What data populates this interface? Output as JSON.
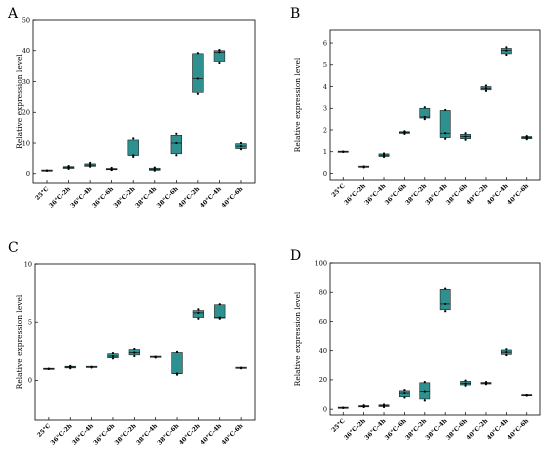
{
  "colors": {
    "box_fill": "#2e9190",
    "outline": "#222222",
    "background": "#ffffff"
  },
  "chart_data": [
    {
      "type": "box",
      "panel": "A",
      "ylabel": "Relative expression level",
      "ylim": [
        -3,
        50
      ],
      "yticks": [
        0,
        10,
        20,
        30,
        40,
        50
      ],
      "categories": [
        "25°C",
        "36°C-2h",
        "36°C-4h",
        "36°C-6h",
        "38°C-2h",
        "38°C-4h",
        "38°C-6h",
        "40°C-2h",
        "40°C-4h",
        "40°C-6h"
      ],
      "values": [
        {
          "min": 1.0,
          "q1": 1.0,
          "median": 1.0,
          "q3": 1.0,
          "max": 1.0
        },
        {
          "min": 1.6,
          "q1": 1.7,
          "median": 2.0,
          "q3": 2.3,
          "max": 2.5
        },
        {
          "min": 2.3,
          "q1": 2.4,
          "median": 2.8,
          "q3": 3.2,
          "max": 3.5
        },
        {
          "min": 1.2,
          "q1": 1.3,
          "median": 1.5,
          "q3": 1.7,
          "max": 1.9
        },
        {
          "min": 5.5,
          "q1": 6.0,
          "median": 6.0,
          "q3": 11.0,
          "max": 11.5
        },
        {
          "min": 1.0,
          "q1": 1.1,
          "median": 1.4,
          "q3": 1.8,
          "max": 2.0
        },
        {
          "min": 6.0,
          "q1": 6.5,
          "median": 10.0,
          "q3": 12.5,
          "max": 13.0
        },
        {
          "min": 26.0,
          "q1": 26.5,
          "median": 31.0,
          "q3": 39.0,
          "max": 39.2
        },
        {
          "min": 36.0,
          "q1": 36.5,
          "median": 39.5,
          "q3": 40.0,
          "max": 40.2
        },
        {
          "min": 8.0,
          "q1": 8.2,
          "median": 9.0,
          "q3": 9.8,
          "max": 10.0
        }
      ]
    },
    {
      "type": "box",
      "panel": "B",
      "ylabel": "Relative expression level",
      "ylim": [
        -0.3,
        6.6
      ],
      "yticks": [
        0,
        1,
        2,
        3,
        4,
        5,
        6
      ],
      "categories": [
        "25°C",
        "36°C-2h",
        "36°C-4h",
        "36°C-6h",
        "38°C-2h",
        "38°C-4h",
        "38°C-6h",
        "40°C-2h",
        "40°C-4h",
        "40°C-6h"
      ],
      "values": [
        {
          "min": 1.0,
          "q1": 1.0,
          "median": 1.0,
          "q3": 1.0,
          "max": 1.0
        },
        {
          "min": 0.28,
          "q1": 0.29,
          "median": 0.3,
          "q3": 0.31,
          "max": 0.32
        },
        {
          "min": 0.76,
          "q1": 0.78,
          "median": 0.84,
          "q3": 0.9,
          "max": 0.92
        },
        {
          "min": 1.82,
          "q1": 1.84,
          "median": 1.88,
          "q3": 1.92,
          "max": 1.94
        },
        {
          "min": 2.5,
          "q1": 2.55,
          "median": 2.6,
          "q3": 3.0,
          "max": 3.05
        },
        {
          "min": 1.6,
          "q1": 1.65,
          "median": 1.85,
          "q3": 2.9,
          "max": 2.92
        },
        {
          "min": 1.55,
          "q1": 1.6,
          "median": 1.7,
          "q3": 1.8,
          "max": 1.85
        },
        {
          "min": 3.8,
          "q1": 3.85,
          "median": 3.92,
          "q3": 4.0,
          "max": 4.05
        },
        {
          "min": 5.45,
          "q1": 5.5,
          "median": 5.65,
          "q3": 5.75,
          "max": 5.8
        },
        {
          "min": 1.58,
          "q1": 1.6,
          "median": 1.65,
          "q3": 1.7,
          "max": 1.72
        }
      ]
    },
    {
      "type": "box",
      "panel": "C",
      "ylabel": "Relative expression level",
      "ylim": [
        -3.4,
        10
      ],
      "yticks": [
        0,
        5,
        10
      ],
      "categories": [
        "25°C",
        "36°C-2h",
        "36°C-4h",
        "36°C-6h",
        "38°C-2h",
        "38°C-4h",
        "38°C-6h",
        "40°C-2h",
        "40°C-4h",
        "40°C-6h"
      ],
      "values": [
        {
          "min": 1.0,
          "q1": 1.0,
          "median": 1.0,
          "q3": 1.0,
          "max": 1.0
        },
        {
          "min": 1.05,
          "q1": 1.08,
          "median": 1.15,
          "q3": 1.22,
          "max": 1.25
        },
        {
          "min": 1.12,
          "q1": 1.13,
          "median": 1.15,
          "q3": 1.17,
          "max": 1.18
        },
        {
          "min": 1.9,
          "q1": 1.95,
          "median": 2.1,
          "q3": 2.3,
          "max": 2.35
        },
        {
          "min": 2.1,
          "q1": 2.2,
          "median": 2.4,
          "q3": 2.65,
          "max": 2.7
        },
        {
          "min": 1.98,
          "q1": 2.0,
          "median": 2.02,
          "q3": 2.04,
          "max": 2.05
        },
        {
          "min": 0.5,
          "q1": 0.6,
          "median": 0.6,
          "q3": 2.4,
          "max": 2.45
        },
        {
          "min": 5.3,
          "q1": 5.4,
          "median": 5.8,
          "q3": 6.0,
          "max": 6.1
        },
        {
          "min": 5.3,
          "q1": 5.35,
          "median": 5.4,
          "q3": 6.5,
          "max": 6.55
        },
        {
          "min": 1.05,
          "q1": 1.06,
          "median": 1.07,
          "q3": 1.09,
          "max": 1.1
        }
      ]
    },
    {
      "type": "box",
      "panel": "D",
      "ylabel": "Relative expression level",
      "ylim": [
        -4,
        100
      ],
      "yticks": [
        0,
        20,
        40,
        60,
        80,
        100
      ],
      "categories": [
        "25°C",
        "36°C-2h",
        "36°C-4h",
        "36°C-6h",
        "38°C-2h",
        "38°C-4h",
        "38°C-6h",
        "40°C-2h",
        "40°C-4h",
        "40°C-6h"
      ],
      "values": [
        {
          "min": 1.0,
          "q1": 1.0,
          "median": 1.0,
          "q3": 1.0,
          "max": 1.0
        },
        {
          "min": 1.5,
          "q1": 1.6,
          "median": 2.0,
          "q3": 2.5,
          "max": 2.7
        },
        {
          "min": 1.5,
          "q1": 1.8,
          "median": 2.5,
          "q3": 3.0,
          "max": 3.2
        },
        {
          "min": 8.0,
          "q1": 8.5,
          "median": 11.0,
          "q3": 12.5,
          "max": 13.0
        },
        {
          "min": 6.0,
          "q1": 7.0,
          "median": 12.0,
          "q3": 18.0,
          "max": 18.5
        },
        {
          "min": 67.0,
          "q1": 68.0,
          "median": 72.0,
          "q3": 82.0,
          "max": 82.5
        },
        {
          "min": 16.0,
          "q1": 16.5,
          "median": 17.5,
          "q3": 19.0,
          "max": 19.5
        },
        {
          "min": 17.0,
          "q1": 17.2,
          "median": 17.8,
          "q3": 18.2,
          "max": 18.5
        },
        {
          "min": 37.0,
          "q1": 37.5,
          "median": 39.0,
          "q3": 40.5,
          "max": 41.0
        },
        {
          "min": 9.3,
          "q1": 9.4,
          "median": 9.5,
          "q3": 9.6,
          "max": 9.7
        }
      ]
    }
  ]
}
